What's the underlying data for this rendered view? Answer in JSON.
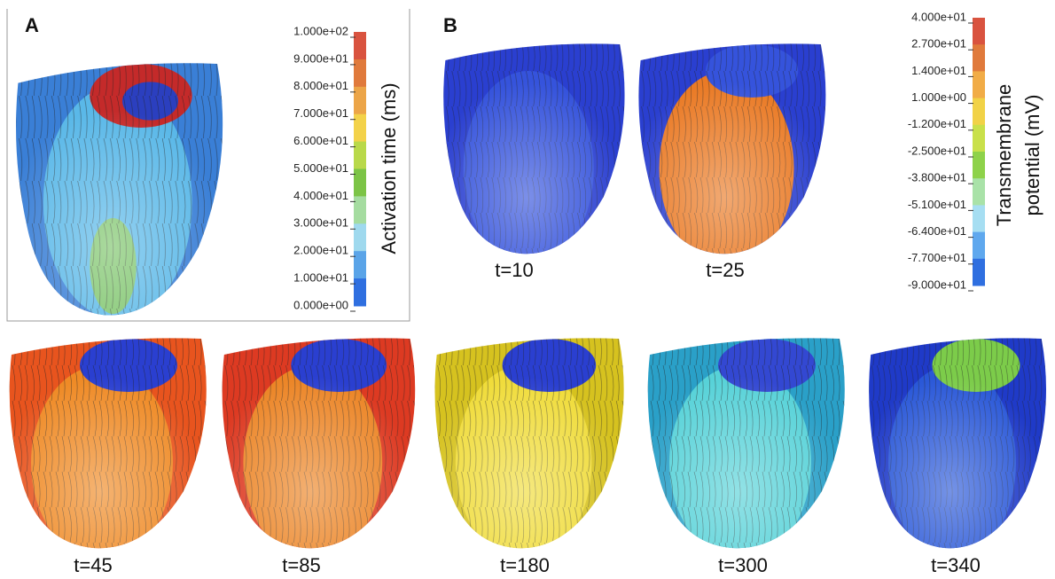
{
  "panel_a": {
    "label": "A",
    "colorbar": {
      "title": "Activation time (ms)",
      "ticks": [
        "1.000e+02",
        "9.000e+01",
        "8.000e+01",
        "7.000e+01",
        "6.000e+01",
        "5.000e+01",
        "4.000e+01",
        "3.000e+01",
        "2.000e+01",
        "1.000e+01",
        "0.000e+00"
      ]
    }
  },
  "panel_b": {
    "label": "B",
    "colorbar": {
      "title_lines": [
        "Transmembrane",
        "potential (mV)"
      ],
      "ticks": [
        "4.000e+01",
        "2.700e+01",
        "1.400e+01",
        "1.000e+00",
        "-1.200e+01",
        "-2.500e+01",
        "-3.800e+01",
        "-5.100e+01",
        "-6.400e+01",
        "-7.700e+01",
        "-9.000e+01"
      ]
    },
    "frames": [
      "t=10",
      "t=25",
      "t=45",
      "t=85",
      "t=180",
      "t=300",
      "t=340"
    ]
  }
}
